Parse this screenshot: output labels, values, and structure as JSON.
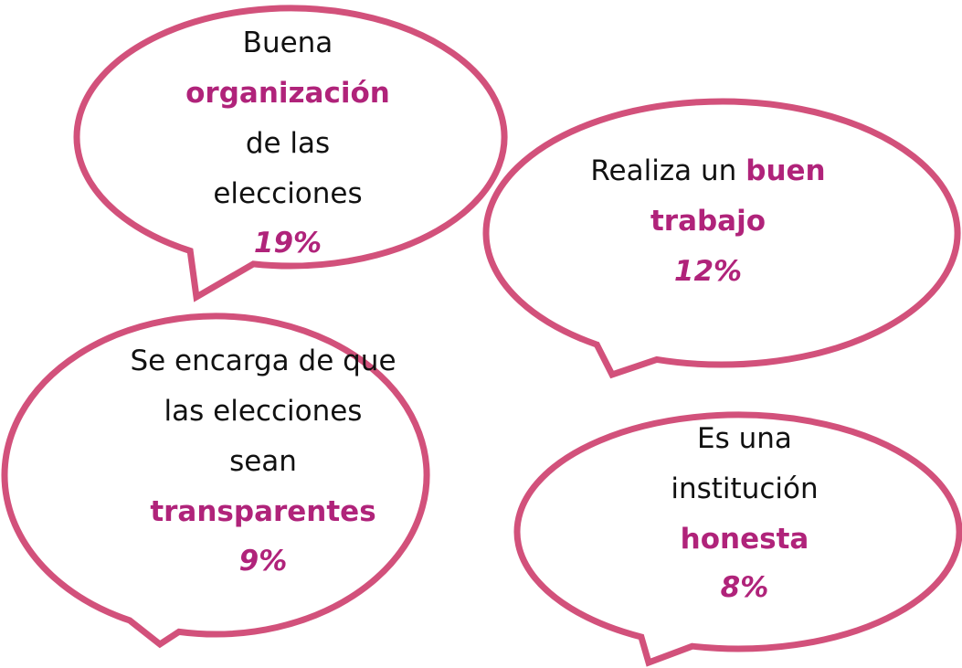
{
  "bubbles": [
    {
      "lines": [
        "Buena",
        "organización",
        "de las",
        "elecciones"
      ],
      "percent": "19%"
    },
    {
      "lines": [
        "Realiza un",
        "buen",
        "trabajo"
      ],
      "percent": "12%"
    },
    {
      "lines": [
        "Se encarga de que",
        "las elecciones",
        "sean",
        "transparentes"
      ],
      "percent": "9%"
    },
    {
      "lines": [
        "Es una",
        "institución",
        "honesta"
      ],
      "percent": "8%"
    }
  ]
}
